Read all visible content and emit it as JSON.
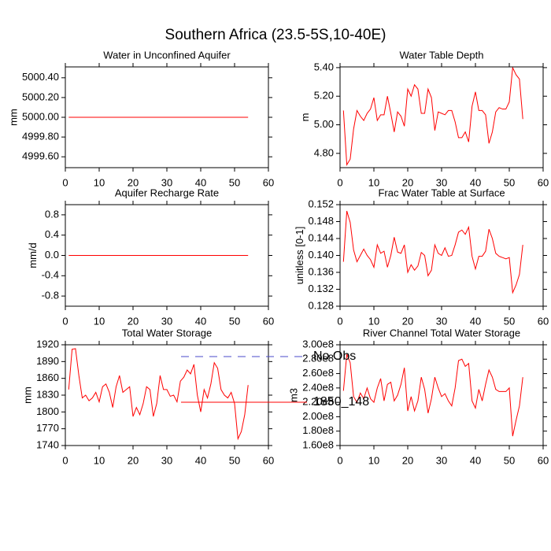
{
  "title": "Southern Africa (23.5-5S,10-40E)",
  "legend": [
    {
      "name": "No Obs",
      "color": "#4a4ac8",
      "dash": true
    },
    {
      "name": "1850_148",
      "color": "#ff0000",
      "dash": false
    }
  ],
  "chart_data": [
    {
      "type": "line",
      "title": "Water in Unconfined Aquifer",
      "ylabel": "mm",
      "x": [
        1,
        2,
        3,
        4,
        5,
        6,
        7,
        8,
        9,
        10,
        11,
        12,
        13,
        14,
        15,
        16,
        17,
        18,
        19,
        20,
        21,
        22,
        23,
        24,
        25,
        26,
        27,
        28,
        29,
        30,
        31,
        32,
        33,
        34,
        35,
        36,
        37,
        38,
        39,
        40,
        41,
        42,
        43,
        44,
        45,
        46,
        47,
        48,
        49,
        50,
        51,
        52,
        53,
        54
      ],
      "xlim": [
        0,
        60
      ],
      "xticks": [
        0,
        10,
        20,
        30,
        40,
        50,
        60
      ],
      "ylim": [
        4999.49,
        5000.51
      ],
      "yticks": [
        {
          "value": 4999.6,
          "label": "4999.60"
        },
        {
          "value": 4999.8,
          "label": "4999.80"
        },
        {
          "value": 5000,
          "label": "5000.00"
        },
        {
          "value": 5000.2,
          "label": "5000.20"
        },
        {
          "value": 5000.4,
          "label": "5000.40"
        }
      ],
      "series": [
        {
          "color": "#ff0000",
          "values": [
            5000,
            5000,
            5000,
            5000,
            5000,
            5000,
            5000,
            5000,
            5000,
            5000,
            5000,
            5000,
            5000,
            5000,
            5000,
            5000,
            5000,
            5000,
            5000,
            5000,
            5000,
            5000,
            5000,
            5000,
            5000,
            5000,
            5000,
            5000,
            5000,
            5000,
            5000,
            5000,
            5000,
            5000,
            5000,
            5000,
            5000,
            5000,
            5000,
            5000,
            5000,
            5000,
            5000,
            5000,
            5000,
            5000,
            5000,
            5000,
            5000,
            5000,
            5000,
            5000,
            5000,
            5000
          ]
        }
      ]
    },
    {
      "type": "line",
      "title": "Water Table Depth",
      "ylabel": "m",
      "x": [
        1,
        2,
        3,
        4,
        5,
        6,
        7,
        8,
        9,
        10,
        11,
        12,
        13,
        14,
        15,
        16,
        17,
        18,
        19,
        20,
        21,
        22,
        23,
        24,
        25,
        26,
        27,
        28,
        29,
        30,
        31,
        32,
        33,
        34,
        35,
        36,
        37,
        38,
        39,
        40,
        41,
        42,
        43,
        44,
        45,
        46,
        47,
        48,
        49,
        50,
        51,
        52,
        53,
        54
      ],
      "xlim": [
        0,
        60
      ],
      "xticks": [
        0,
        10,
        20,
        30,
        40,
        50,
        60
      ],
      "ylim": [
        4.7,
        5.405
      ],
      "yticks": [
        {
          "value": 4.8,
          "label": "4.80"
        },
        {
          "value": 5,
          "label": "5.00"
        },
        {
          "value": 5.2,
          "label": "5.20"
        },
        {
          "value": 5.4,
          "label": "5.40"
        }
      ],
      "series": [
        {
          "color": "#ff0000",
          "values": [
            5.1,
            4.72,
            4.76,
            4.97,
            5.1,
            5.06,
            5.03,
            5.08,
            5.11,
            5.19,
            5.03,
            5.07,
            5.07,
            5.2,
            5.08,
            4.95,
            5.09,
            5.06,
            4.99,
            5.25,
            5.2,
            5.28,
            5.25,
            5.08,
            5.08,
            5.25,
            5.19,
            4.96,
            5.09,
            5.08,
            5.07,
            5.1,
            5.1,
            5.02,
            4.91,
            4.91,
            4.95,
            4.88,
            5.13,
            5.23,
            5.1,
            5.1,
            5.07,
            4.87,
            4.95,
            5.09,
            5.12,
            5.11,
            5.11,
            5.16,
            5.4,
            5.35,
            5.32,
            5.04
          ]
        }
      ]
    },
    {
      "type": "line",
      "title": "Aquifer Recharge Rate",
      "ylabel": "mm/d",
      "x": [
        1,
        2,
        3,
        4,
        5,
        6,
        7,
        8,
        9,
        10,
        11,
        12,
        13,
        14,
        15,
        16,
        17,
        18,
        19,
        20,
        21,
        22,
        23,
        24,
        25,
        26,
        27,
        28,
        29,
        30,
        31,
        32,
        33,
        34,
        35,
        36,
        37,
        38,
        39,
        40,
        41,
        42,
        43,
        44,
        45,
        46,
        47,
        48,
        49,
        50,
        51,
        52,
        53,
        54
      ],
      "xlim": [
        0,
        60
      ],
      "xticks": [
        0,
        10,
        20,
        30,
        40,
        50,
        60
      ],
      "ylim": [
        -1,
        1
      ],
      "yticks": [
        -0.8,
        -0.4,
        {
          "value": 0,
          "label": "0.0"
        },
        0.4,
        0.8
      ],
      "series": [
        {
          "color": "#ff0000",
          "values": [
            0,
            0,
            0,
            0,
            0,
            0,
            0,
            0,
            0,
            0,
            0,
            0,
            0,
            0,
            0,
            0,
            0,
            0,
            0,
            0,
            0,
            0,
            0,
            0,
            0,
            0,
            0,
            0,
            0,
            0,
            0,
            0,
            0,
            0,
            0,
            0,
            0,
            0,
            0,
            0,
            0,
            0,
            0,
            0,
            0,
            0,
            0,
            0,
            0,
            0,
            0,
            0,
            0,
            0
          ]
        }
      ]
    },
    {
      "type": "line",
      "title": "Frac Water Table at Surface",
      "ylabel": "unitless [0-1]",
      "x": [
        1,
        2,
        3,
        4,
        5,
        6,
        7,
        8,
        9,
        10,
        11,
        12,
        13,
        14,
        15,
        16,
        17,
        18,
        19,
        20,
        21,
        22,
        23,
        24,
        25,
        26,
        27,
        28,
        29,
        30,
        31,
        32,
        33,
        34,
        35,
        36,
        37,
        38,
        39,
        40,
        41,
        42,
        43,
        44,
        45,
        46,
        47,
        48,
        49,
        50,
        51,
        52,
        53,
        54
      ],
      "xlim": [
        0,
        60
      ],
      "xticks": [
        0,
        10,
        20,
        30,
        40,
        50,
        60
      ],
      "ylim": [
        0.128,
        0.152
      ],
      "yticks": [
        0.128,
        0.132,
        0.136,
        {
          "value": 0.14,
          "label": "0.140"
        },
        0.144,
        0.148,
        0.152
      ],
      "series": [
        {
          "color": "#ff0000",
          "values": [
            0.1385,
            0.1505,
            0.1478,
            0.1413,
            0.1385,
            0.14,
            0.1415,
            0.14,
            0.139,
            0.1372,
            0.1425,
            0.1405,
            0.141,
            0.1372,
            0.14,
            0.1443,
            0.1408,
            0.1405,
            0.1425,
            0.136,
            0.1378,
            0.1365,
            0.1375,
            0.1407,
            0.14,
            0.1352,
            0.1365,
            0.1425,
            0.1405,
            0.14,
            0.1418,
            0.1398,
            0.14,
            0.1425,
            0.1455,
            0.146,
            0.145,
            0.1467,
            0.1398,
            0.1368,
            0.1398,
            0.1398,
            0.141,
            0.1462,
            0.144,
            0.1405,
            0.1398,
            0.1395,
            0.1392,
            0.1395,
            0.1312,
            0.133,
            0.1355,
            0.1425
          ]
        }
      ]
    },
    {
      "type": "line",
      "title": "Total Water Storage",
      "ylabel": "mm",
      "x": [
        1,
        2,
        3,
        4,
        5,
        6,
        7,
        8,
        9,
        10,
        11,
        12,
        13,
        14,
        15,
        16,
        17,
        18,
        19,
        20,
        21,
        22,
        23,
        24,
        25,
        26,
        27,
        28,
        29,
        30,
        31,
        32,
        33,
        34,
        35,
        36,
        37,
        38,
        39,
        40,
        41,
        42,
        43,
        44,
        45,
        46,
        47,
        48,
        49,
        50,
        51,
        52,
        53,
        54
      ],
      "xlim": [
        0,
        60
      ],
      "xticks": [
        0,
        10,
        20,
        30,
        40,
        50,
        60
      ],
      "ylim": [
        1740,
        1920
      ],
      "yticks": [
        1740,
        1770,
        1800,
        1830,
        1860,
        1890,
        1920
      ],
      "series": [
        {
          "color": "#ff0000",
          "values": [
            1840,
            1912,
            1913,
            1865,
            1825,
            1830,
            1820,
            1825,
            1835,
            1818,
            1845,
            1850,
            1835,
            1808,
            1845,
            1865,
            1835,
            1840,
            1845,
            1792,
            1808,
            1795,
            1815,
            1845,
            1840,
            1792,
            1815,
            1865,
            1840,
            1840,
            1828,
            1830,
            1818,
            1855,
            1862,
            1875,
            1868,
            1885,
            1830,
            1800,
            1840,
            1825,
            1850,
            1888,
            1878,
            1840,
            1830,
            1825,
            1835,
            1815,
            1752,
            1765,
            1795,
            1848
          ]
        }
      ]
    },
    {
      "type": "line",
      "title": "River Channel Total Water Storage",
      "ylabel": "m3",
      "x": [
        1,
        2,
        3,
        4,
        5,
        6,
        7,
        8,
        9,
        10,
        11,
        12,
        13,
        14,
        15,
        16,
        17,
        18,
        19,
        20,
        21,
        22,
        23,
        24,
        25,
        26,
        27,
        28,
        29,
        30,
        31,
        32,
        33,
        34,
        35,
        36,
        37,
        38,
        39,
        40,
        41,
        42,
        43,
        44,
        45,
        46,
        47,
        48,
        49,
        50,
        51,
        52,
        53,
        54
      ],
      "xlim": [
        0,
        60
      ],
      "xticks": [
        0,
        10,
        20,
        30,
        40,
        50,
        60
      ],
      "ylim": [
        160000000,
        300000000
      ],
      "yticks": [
        {
          "value": 160000000,
          "label": "1.60e8"
        },
        {
          "value": 180000000,
          "label": "1.80e8"
        },
        {
          "value": 200000000,
          "label": "2.00e8"
        },
        {
          "value": 220000000,
          "label": "2.20e8"
        },
        {
          "value": 240000000,
          "label": "2.40e8"
        },
        {
          "value": 260000000,
          "label": "2.60e8"
        },
        {
          "value": 280000000,
          "label": "2.80e8"
        },
        {
          "value": 300000000,
          "label": "3.00e8"
        }
      ],
      "series": [
        {
          "color": "#ff0000",
          "values": [
            236000000,
            287000000,
            275000000,
            228000000,
            220000000,
            233000000,
            225000000,
            240000000,
            225000000,
            220000000,
            240000000,
            253000000,
            222000000,
            245000000,
            248000000,
            222000000,
            230000000,
            245000000,
            268000000,
            208000000,
            228000000,
            208000000,
            222000000,
            255000000,
            238000000,
            205000000,
            225000000,
            255000000,
            240000000,
            228000000,
            232000000,
            222000000,
            215000000,
            240000000,
            278000000,
            280000000,
            270000000,
            274000000,
            222000000,
            212000000,
            238000000,
            222000000,
            245000000,
            265000000,
            255000000,
            238000000,
            235000000,
            235000000,
            235000000,
            240000000,
            173000000,
            195000000,
            215000000,
            255000000
          ]
        }
      ]
    }
  ]
}
